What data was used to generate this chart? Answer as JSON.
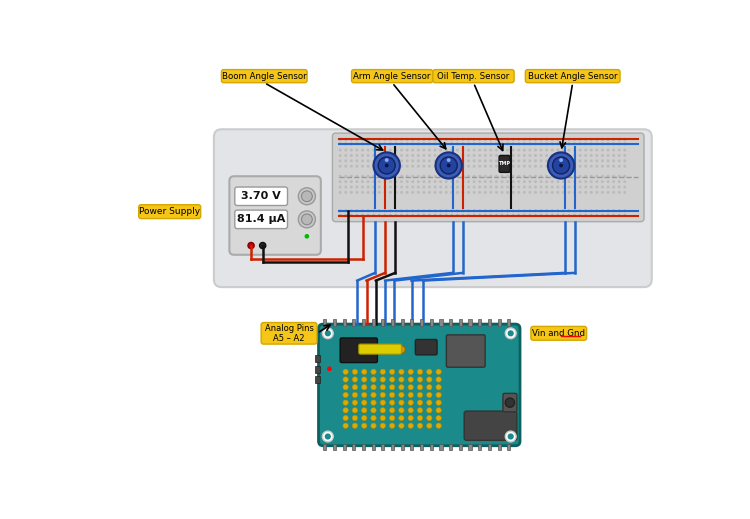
{
  "white_bg": "#ffffff",
  "panel_color": "#e2e4e8",
  "bb_color": "#d4d4d4",
  "bb_edge": "#b0b0b0",
  "ps_color": "#d8d8d8",
  "ps_edge": "#aaaaaa",
  "teal": "#1a8a8a",
  "teal_dark": "#0d6060",
  "wire_red": "#cc2200",
  "wire_blue": "#2266cc",
  "wire_black": "#111111",
  "knob_outer": "#3a5db5",
  "knob_inner": "#2244a0",
  "label_bg": "#f5c518",
  "label_edge": "#d4a800",
  "labels": {
    "boom": "Boom Angle Sensor",
    "arm": "Arm Angle Sensor",
    "oil": "Oil Temp. Sensor",
    "bucket": "Bucket Angle Sensor",
    "power": "Power Supply",
    "voltage": "3.70 V",
    "current": "81.4 μA",
    "analog_pins": "Analog Pins\nA5 – A2",
    "vin_gnd": "Vin and Gnd"
  }
}
